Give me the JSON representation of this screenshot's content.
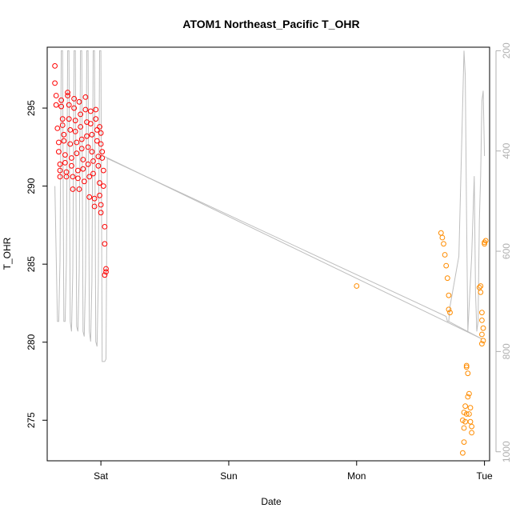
{
  "chart_data": {
    "type": "scatter",
    "title": "ATOM1 Northeast_Pacific T_OHR",
    "xlabel": "Date",
    "ylabel": "T_OHR",
    "x_ticks": [
      "Sat",
      "Sun",
      "Mon",
      "Tue"
    ],
    "x_tick_values": [
      1.0,
      2.0,
      3.0,
      4.0
    ],
    "xlim": [
      0.58,
      4.04
    ],
    "ylim": [
      272.4,
      298.9
    ],
    "y_ticks": [
      275,
      280,
      285,
      290,
      295
    ],
    "y2_ticks": [
      200,
      400,
      600,
      800,
      1000
    ],
    "y2lim": [
      193,
      1018
    ],
    "y2_reversed": true,
    "grid": false,
    "colors": {
      "series1": "#ff0000",
      "series2": "#ff8c00",
      "line": "#bebebe",
      "axis": "#000000",
      "axis2": "#b0b0b0"
    },
    "series": [
      {
        "color": "#ff0000",
        "marker": "open-circle",
        "points": [
          [
            0.64,
            297.7
          ],
          [
            0.64,
            296.6
          ],
          [
            0.65,
            295.8
          ],
          [
            0.65,
            295.2
          ],
          [
            0.66,
            293.7
          ],
          [
            0.67,
            292.8
          ],
          [
            0.67,
            292.2
          ],
          [
            0.68,
            291.4
          ],
          [
            0.68,
            291.0
          ],
          [
            0.68,
            290.6
          ],
          [
            0.69,
            295.5
          ],
          [
            0.69,
            295.1
          ],
          [
            0.7,
            294.3
          ],
          [
            0.7,
            293.9
          ],
          [
            0.71,
            293.3
          ],
          [
            0.71,
            292.9
          ],
          [
            0.72,
            292.0
          ],
          [
            0.72,
            291.5
          ],
          [
            0.73,
            290.9
          ],
          [
            0.73,
            290.6
          ],
          [
            0.74,
            296.0
          ],
          [
            0.74,
            295.8
          ],
          [
            0.75,
            295.2
          ],
          [
            0.75,
            294.3
          ],
          [
            0.76,
            293.6
          ],
          [
            0.76,
            292.7
          ],
          [
            0.77,
            291.8
          ],
          [
            0.77,
            291.3
          ],
          [
            0.78,
            290.6
          ],
          [
            0.78,
            289.8
          ],
          [
            0.79,
            295.6
          ],
          [
            0.79,
            295.0
          ],
          [
            0.8,
            294.2
          ],
          [
            0.8,
            293.5
          ],
          [
            0.81,
            292.8
          ],
          [
            0.81,
            292.1
          ],
          [
            0.82,
            291.0
          ],
          [
            0.82,
            290.5
          ],
          [
            0.83,
            289.8
          ],
          [
            0.83,
            295.4
          ],
          [
            0.84,
            294.6
          ],
          [
            0.84,
            293.8
          ],
          [
            0.85,
            293.0
          ],
          [
            0.85,
            292.4
          ],
          [
            0.86,
            291.7
          ],
          [
            0.86,
            291.1
          ],
          [
            0.87,
            290.3
          ],
          [
            0.88,
            295.7
          ],
          [
            0.88,
            294.9
          ],
          [
            0.89,
            294.1
          ],
          [
            0.89,
            293.2
          ],
          [
            0.9,
            292.5
          ],
          [
            0.9,
            291.4
          ],
          [
            0.91,
            290.6
          ],
          [
            0.91,
            289.3
          ],
          [
            0.92,
            294.8
          ],
          [
            0.92,
            294.0
          ],
          [
            0.93,
            293.3
          ],
          [
            0.93,
            292.2
          ],
          [
            0.94,
            291.6
          ],
          [
            0.94,
            290.8
          ],
          [
            0.95,
            289.2
          ],
          [
            0.95,
            288.7
          ],
          [
            0.96,
            294.9
          ],
          [
            0.96,
            294.3
          ],
          [
            0.97,
            293.6
          ],
          [
            0.97,
            292.9
          ],
          [
            0.98,
            291.9
          ],
          [
            0.98,
            291.3
          ],
          [
            0.99,
            290.2
          ],
          [
            0.99,
            289.4
          ],
          [
            1.0,
            288.8
          ],
          [
            1.0,
            288.3
          ],
          [
            0.99,
            293.8
          ],
          [
            1.0,
            293.4
          ],
          [
            1.0,
            292.7
          ],
          [
            1.01,
            292.2
          ],
          [
            1.01,
            291.8
          ],
          [
            1.02,
            290.0
          ],
          [
            1.02,
            291.0
          ],
          [
            1.03,
            287.4
          ],
          [
            1.03,
            286.3
          ],
          [
            1.04,
            284.7
          ],
          [
            1.04,
            284.5
          ],
          [
            1.03,
            284.3
          ]
        ]
      },
      {
        "color": "#ff8c00",
        "marker": "open-circle",
        "points": [
          [
            3.0,
            283.6
          ],
          [
            3.66,
            287.0
          ],
          [
            3.67,
            286.7
          ],
          [
            3.68,
            286.3
          ],
          [
            3.69,
            285.6
          ],
          [
            3.7,
            284.9
          ],
          [
            3.71,
            284.1
          ],
          [
            3.72,
            283.0
          ],
          [
            3.72,
            282.1
          ],
          [
            3.73,
            281.9
          ],
          [
            3.86,
            278.4
          ],
          [
            3.86,
            278.5
          ],
          [
            3.87,
            278.0
          ],
          [
            3.88,
            276.7
          ],
          [
            3.87,
            276.5
          ],
          [
            3.86,
            275.4
          ],
          [
            3.85,
            275.9
          ],
          [
            3.84,
            275.5
          ],
          [
            3.85,
            274.9
          ],
          [
            3.84,
            274.5
          ],
          [
            3.83,
            275.0
          ],
          [
            3.84,
            273.6
          ],
          [
            3.83,
            272.9
          ],
          [
            3.88,
            275.4
          ],
          [
            3.89,
            274.9
          ],
          [
            3.89,
            275.8
          ],
          [
            3.9,
            274.6
          ],
          [
            3.9,
            274.2
          ],
          [
            3.96,
            283.5
          ],
          [
            3.97,
            283.2
          ],
          [
            3.97,
            283.6
          ],
          [
            3.98,
            281.9
          ],
          [
            3.98,
            281.4
          ],
          [
            3.99,
            280.9
          ],
          [
            3.98,
            280.5
          ],
          [
            3.99,
            280.1
          ],
          [
            3.98,
            279.9
          ],
          [
            4.0,
            286.3
          ],
          [
            4.0,
            286.4
          ],
          [
            4.01,
            286.5
          ]
        ]
      }
    ],
    "line": {
      "color": "#bebebe",
      "axis": "right",
      "points": [
        [
          0.64,
          470
        ],
        [
          0.66,
          740
        ],
        [
          0.67,
          740
        ],
        [
          0.68,
          620
        ],
        [
          0.69,
          200
        ],
        [
          0.7,
          200
        ],
        [
          0.71,
          740
        ],
        [
          0.72,
          740
        ],
        [
          0.73,
          620
        ],
        [
          0.74,
          200
        ],
        [
          0.75,
          200
        ],
        [
          0.76,
          740
        ],
        [
          0.77,
          760
        ],
        [
          0.78,
          640
        ],
        [
          0.79,
          200
        ],
        [
          0.8,
          200
        ],
        [
          0.81,
          750
        ],
        [
          0.82,
          760
        ],
        [
          0.83,
          640
        ],
        [
          0.84,
          200
        ],
        [
          0.85,
          200
        ],
        [
          0.86,
          760
        ],
        [
          0.87,
          770
        ],
        [
          0.88,
          650
        ],
        [
          0.89,
          200
        ],
        [
          0.9,
          200
        ],
        [
          0.91,
          760
        ],
        [
          0.92,
          780
        ],
        [
          0.93,
          660
        ],
        [
          0.94,
          200
        ],
        [
          0.95,
          200
        ],
        [
          0.96,
          780
        ],
        [
          0.97,
          790
        ],
        [
          0.98,
          660
        ],
        [
          0.99,
          200
        ],
        [
          1.0,
          200
        ],
        [
          1.01,
          820
        ],
        [
          1.03,
          820
        ],
        [
          1.04,
          815
        ],
        [
          1.05,
          415
        ],
        [
          3.7,
          730
        ],
        [
          3.71,
          740
        ],
        [
          3.72,
          740
        ],
        [
          3.73,
          710
        ],
        [
          3.8,
          610
        ],
        [
          3.84,
          200
        ],
        [
          3.85,
          250
        ],
        [
          3.86,
          530
        ],
        [
          3.87,
          760
        ],
        [
          3.88,
          710
        ],
        [
          3.9,
          610
        ],
        [
          3.92,
          450
        ],
        [
          3.93,
          680
        ],
        [
          3.94,
          760
        ],
        [
          3.95,
          740
        ],
        [
          3.96,
          540
        ],
        [
          3.97,
          450
        ],
        [
          3.98,
          300
        ],
        [
          3.99,
          280
        ],
        [
          4.0,
          410
        ]
      ],
      "extra_segments": [
        [
          [
            1.02,
            410
          ],
          [
            3.98,
            775
          ]
        ],
        [
          [
            3.98,
            775
          ],
          [
            3.72,
            740
          ]
        ]
      ]
    }
  }
}
